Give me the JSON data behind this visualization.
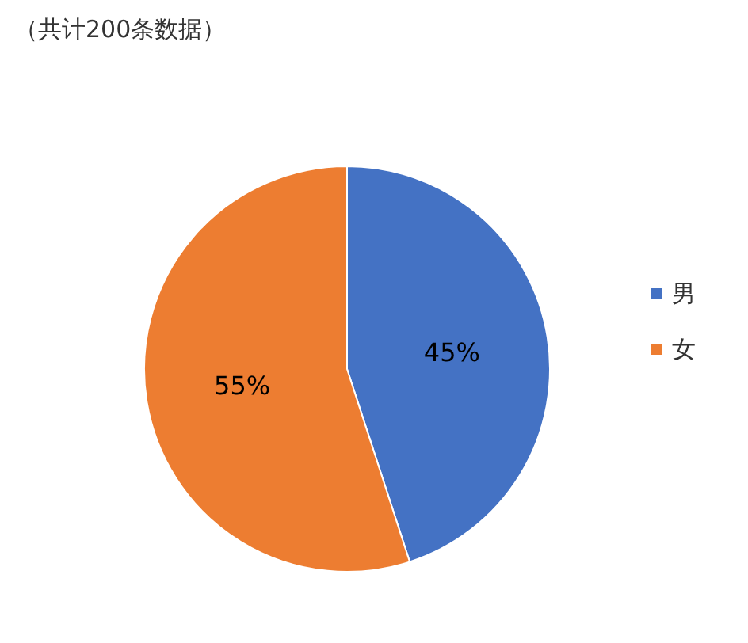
{
  "chart_data": {
    "type": "pie",
    "title": "（共计200条数据）",
    "categories": [
      "男",
      "女"
    ],
    "values": [
      45,
      55
    ],
    "colors": [
      "#4472c4",
      "#ed7d31"
    ],
    "value_labels": [
      "45%",
      "55%"
    ],
    "legend": "right"
  }
}
